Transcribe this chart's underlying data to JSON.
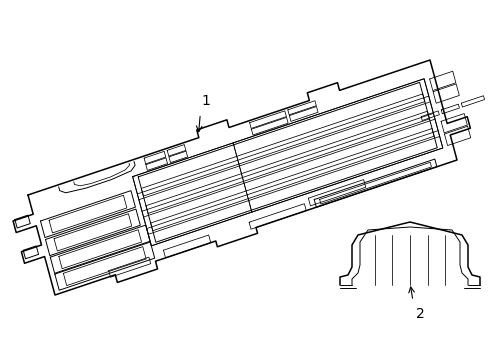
{
  "background_color": "#ffffff",
  "line_color": "#000000",
  "lw_outer": 1.1,
  "lw_inner": 0.7,
  "lw_thin": 0.55,
  "label1": "1",
  "label2": "2",
  "fig_width": 4.89,
  "fig_height": 3.6,
  "dpi": 100
}
